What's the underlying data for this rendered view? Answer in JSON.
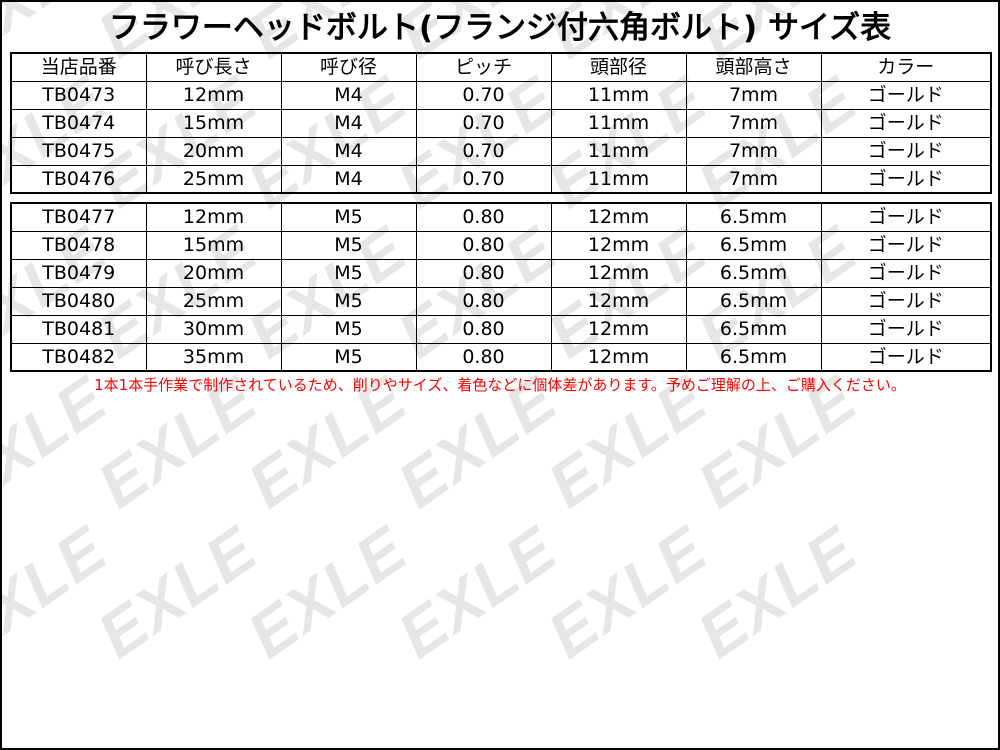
{
  "title": "フラワーヘッドボルト(フランジ付六角ボルト) サイズ表",
  "watermark": "EXLE",
  "headers": [
    "当店品番",
    "呼び長さ",
    "呼び径",
    "ピッチ",
    "頭部径",
    "頭部高さ",
    "カラー"
  ],
  "group1": [
    [
      "TB0473",
      "12mm",
      "M4",
      "0.70",
      "11mm",
      "7mm",
      "ゴールド"
    ],
    [
      "TB0474",
      "15mm",
      "M4",
      "0.70",
      "11mm",
      "7mm",
      "ゴールド"
    ],
    [
      "TB0475",
      "20mm",
      "M4",
      "0.70",
      "11mm",
      "7mm",
      "ゴールド"
    ],
    [
      "TB0476",
      "25mm",
      "M4",
      "0.70",
      "11mm",
      "7mm",
      "ゴールド"
    ]
  ],
  "group2": [
    [
      "TB0477",
      "12mm",
      "M5",
      "0.80",
      "12mm",
      "6.5mm",
      "ゴールド"
    ],
    [
      "TB0478",
      "15mm",
      "M5",
      "0.80",
      "12mm",
      "6.5mm",
      "ゴールド"
    ],
    [
      "TB0479",
      "20mm",
      "M5",
      "0.80",
      "12mm",
      "6.5mm",
      "ゴールド"
    ],
    [
      "TB0480",
      "25mm",
      "M5",
      "0.80",
      "12mm",
      "6.5mm",
      "ゴールド"
    ],
    [
      "TB0481",
      "30mm",
      "M5",
      "0.80",
      "12mm",
      "6.5mm",
      "ゴールド"
    ],
    [
      "TB0482",
      "35mm",
      "M5",
      "0.80",
      "12mm",
      "6.5mm",
      "ゴールド"
    ]
  ],
  "note": "1本1本手作業で制作されているため、削りやサイズ、着色などに個体差があります。予めご理解の上、ご購入ください。",
  "colors": {
    "note": "#ff0000",
    "border": "#000000",
    "watermark": "#e6e6e6"
  }
}
